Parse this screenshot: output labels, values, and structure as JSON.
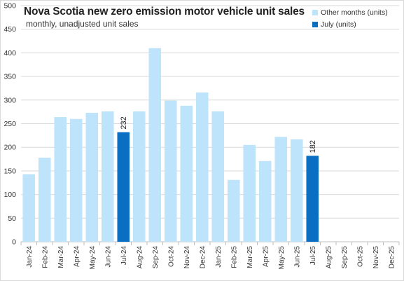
{
  "chart_data": {
    "type": "bar",
    "title": "Nova Scotia new zero emission motor vehicle unit sales",
    "subtitle": "monthly, unadjusted unit sales",
    "xlabel": "",
    "ylabel": "",
    "ylim": [
      0,
      500
    ],
    "y_ticks": [
      0,
      50,
      100,
      150,
      200,
      250,
      300,
      350,
      400,
      450,
      500
    ],
    "grid": true,
    "legend_position": "top-right",
    "categories": [
      "Jan-24",
      "Feb-24",
      "Mar-24",
      "Apr-24",
      "May-24",
      "Jun-24",
      "Jul-24",
      "Aug-24",
      "Sep-24",
      "Oct-24",
      "Nov-24",
      "Dec-24",
      "Jan-25",
      "Feb-25",
      "Mar-25",
      "Apr-25",
      "May-25",
      "Jun-25",
      "Jul-25",
      "Aug-25",
      "Sep-25",
      "Oct-25",
      "Nov-25",
      "Dec-25"
    ],
    "series": [
      {
        "name": "Other months (units)",
        "color": "#bde4fb",
        "values": [
          143,
          178,
          264,
          260,
          273,
          276,
          null,
          276,
          410,
          299,
          288,
          316,
          276,
          131,
          205,
          171,
          222,
          217,
          null,
          null,
          null,
          null,
          null,
          null
        ]
      },
      {
        "name": "July (units)",
        "color": "#0a6fc2",
        "values": [
          null,
          null,
          null,
          null,
          null,
          null,
          232,
          null,
          null,
          null,
          null,
          null,
          null,
          null,
          null,
          null,
          null,
          null,
          182,
          null,
          null,
          null,
          null,
          null
        ]
      }
    ],
    "data_labels": [
      {
        "category": "Jul-24",
        "text": "232"
      },
      {
        "category": "Jul-25",
        "text": "182"
      }
    ]
  }
}
